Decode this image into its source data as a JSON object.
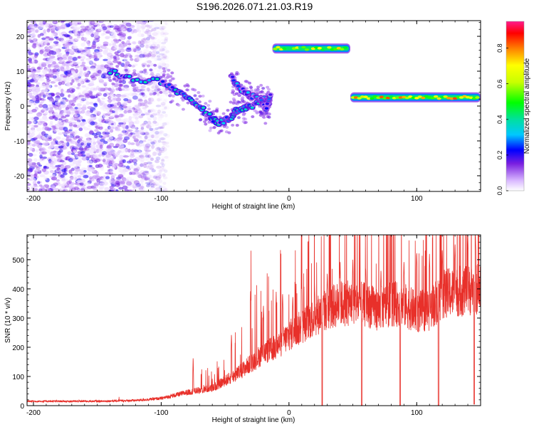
{
  "figure": {
    "title": "S196.2026.071.21.03.R19"
  },
  "chart_data": [
    {
      "type": "heatmap",
      "xlabel": "Height of straight line (km)",
      "ylabel": "Frequency (Hz)",
      "xlim": [
        -205,
        150
      ],
      "ylim": [
        -24.5,
        24.5
      ],
      "xticks": [
        -200,
        -100,
        0,
        100
      ],
      "xtick_labels": [
        "-200",
        "-100",
        "0",
        "100"
      ],
      "yticks": [
        -20,
        -10,
        0,
        10,
        20
      ],
      "ytick_labels": [
        "-20",
        "-10",
        "0",
        "10",
        "20"
      ],
      "colorbar": {
        "label": "Normalized spectral amplitude",
        "range": [
          0.0,
          0.95
        ],
        "ticks": [
          0.0,
          0.2,
          0.4,
          0.6,
          0.8
        ],
        "tick_labels": [
          "0.0",
          "0.2",
          "0.4",
          "0.6",
          "0.8"
        ]
      },
      "features": [
        {
          "name": "noise",
          "x_range": [
            -205,
            -95
          ],
          "y_range": [
            -24.5,
            24.5
          ],
          "amplitude": 0.15
        },
        {
          "name": "descending track",
          "points": [
            [
              -140,
              10
            ],
            [
              -125,
              8
            ],
            [
              -100,
              7
            ],
            [
              -90,
              5
            ],
            [
              -80,
              2
            ],
            [
              -70,
              0
            ],
            [
              -62,
              -3
            ],
            [
              -55,
              -5
            ],
            [
              -45,
              -3
            ],
            [
              -40,
              -1
            ],
            [
              -30,
              0
            ],
            [
              -20,
              2
            ],
            [
              -15,
              1
            ]
          ],
          "amplitude": 0.35
        },
        {
          "name": "secondary track",
          "points": [
            [
              -45,
              8
            ],
            [
              -38,
              5
            ],
            [
              -30,
              3
            ],
            [
              -22,
              2
            ],
            [
              -18,
              -1
            ],
            [
              -14,
              4
            ]
          ],
          "amplitude": 0.3
        },
        {
          "name": "upper band",
          "x_range": [
            -13,
            48
          ],
          "frequency": 16.5,
          "amplitude": 0.75
        },
        {
          "name": "lower band",
          "x_range": [
            48,
            150
          ],
          "frequency": 2.5,
          "amplitude": 0.85
        }
      ]
    },
    {
      "type": "line",
      "xlabel": "Height of straight line (km)",
      "ylabel": "SNR (10 * v/v)",
      "xlim": [
        -205,
        150
      ],
      "ylim": [
        0,
        585
      ],
      "xticks": [
        -200,
        -100,
        0,
        100
      ],
      "xtick_labels": [
        "-200",
        "-100",
        "0",
        "100"
      ],
      "yticks": [
        0,
        100,
        200,
        300,
        400,
        500
      ],
      "ytick_labels": [
        "0",
        "100",
        "200",
        "300",
        "400",
        "500"
      ],
      "series": [
        {
          "name": "SNR",
          "color": "#e8302a",
          "baseline": [
            [
              -205,
              15
            ],
            [
              -150,
              15
            ],
            [
              -120,
              18
            ],
            [
              -100,
              25
            ],
            [
              -80,
              45
            ],
            [
              -60,
              60
            ],
            [
              -40,
              110
            ],
            [
              -20,
              180
            ],
            [
              -10,
              200
            ],
            [
              0,
              240
            ],
            [
              10,
              270
            ],
            [
              20,
              305
            ],
            [
              30,
              330
            ],
            [
              40,
              350
            ],
            [
              50,
              350
            ],
            [
              60,
              345
            ],
            [
              70,
              330
            ],
            [
              80,
              350
            ],
            [
              90,
              345
            ],
            [
              100,
              320
            ],
            [
              110,
              330
            ],
            [
              120,
              380
            ],
            [
              130,
              390
            ],
            [
              150,
              400
            ]
          ],
          "spikes": [
            [
              -133,
              30
            ],
            [
              -75,
              170
            ],
            [
              -60,
              100
            ],
            [
              -45,
              250
            ],
            [
              -30,
              400
            ],
            [
              -20,
              350
            ],
            [
              -10,
              390
            ],
            [
              -5,
              390
            ],
            [
              3,
              380
            ],
            [
              10,
              440
            ],
            [
              20,
              420
            ],
            [
              30,
              460
            ],
            [
              40,
              500
            ],
            [
              50,
              500
            ],
            [
              60,
              480
            ],
            [
              72,
              470
            ],
            [
              80,
              470
            ],
            [
              90,
              500
            ],
            [
              100,
              530
            ],
            [
              110,
              520
            ],
            [
              120,
              540
            ],
            [
              130,
              560
            ],
            [
              140,
              580
            ],
            [
              146,
              580
            ]
          ],
          "dips": [
            [
              26,
              2
            ],
            [
              57,
              2
            ],
            [
              87,
              2
            ],
            [
              117,
              2
            ],
            [
              145,
              5
            ]
          ]
        }
      ]
    }
  ]
}
